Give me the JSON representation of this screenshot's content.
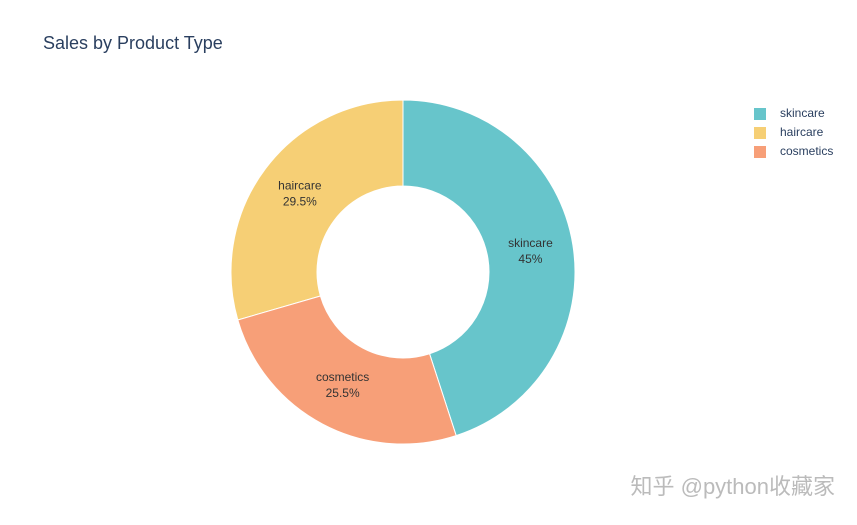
{
  "chart_data": {
    "type": "donut",
    "title": "Sales by Product Type",
    "categories": [
      "skincare",
      "haircare",
      "cosmetics"
    ],
    "values": [
      45,
      29.5,
      25.5
    ],
    "value_labels": [
      "45%",
      "29.5%",
      "25.5%"
    ],
    "colors": [
      "#67c5cb",
      "#f6cf75",
      "#f79f78"
    ],
    "direction": "counterclockwise"
  },
  "watermark": "知乎 @python收藏家"
}
